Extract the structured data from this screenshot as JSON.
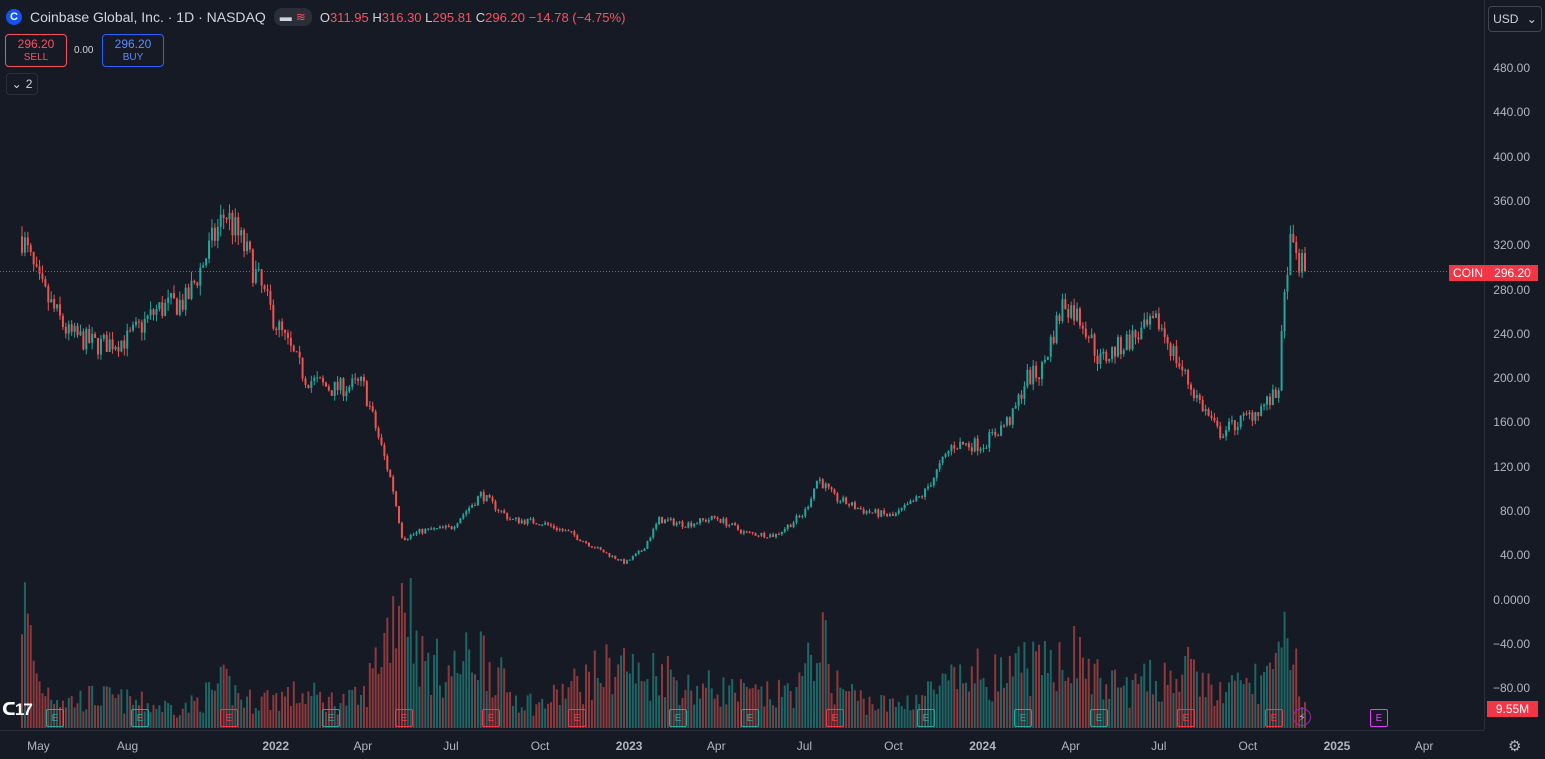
{
  "header": {
    "title": "Coinbase Global, Inc. · 1D · NASDAQ",
    "logo_letter": "C",
    "ohlc": {
      "o_label": "O",
      "o": "311.95",
      "h_label": "H",
      "h": "316.30",
      "l_label": "L",
      "l": "295.81",
      "c_label": "C",
      "c": "296.20",
      "change": "−14.78 (−4.75%)"
    }
  },
  "trade": {
    "sell_price": "296.20",
    "sell_label": "SELL",
    "spread": "0.00",
    "buy_price": "296.20",
    "buy_label": "BUY"
  },
  "indicators_collapse": {
    "count": "2"
  },
  "currency": {
    "value": "USD"
  },
  "price_axis": {
    "labels": [
      "480.00",
      "440.00",
      "400.00",
      "360.00",
      "320.00",
      "280.00",
      "240.00",
      "200.00",
      "160.00",
      "120.00",
      "80.00",
      "40.00",
      "0.0000",
      "−40.00",
      "−80.00"
    ]
  },
  "time_axis": {
    "labels": [
      "May",
      "Aug",
      "2022",
      "Apr",
      "Jul",
      "Oct",
      "2023",
      "Apr",
      "Jul",
      "Oct",
      "2024",
      "Apr",
      "Jul",
      "Oct",
      "2025",
      "Apr"
    ]
  },
  "tags": {
    "symbol": "COIN",
    "last_price": "296.20",
    "volume": "9.55M"
  },
  "earnings_marker": {
    "letter": "E"
  },
  "colors": {
    "up": "#26a69a",
    "down": "#ef5350",
    "background": "#161a25",
    "price_line": "#f23645"
  },
  "chart_data": {
    "type": "candlestick",
    "x": [
      "2021-04-14",
      "2021-05-01",
      "2021-06-01",
      "2021-07-01",
      "2021-08-01",
      "2021-09-01",
      "2021-10-01",
      "2021-11-10",
      "2021-12-01",
      "2022-01-01",
      "2022-02-01",
      "2022-03-01",
      "2022-04-01",
      "2022-05-01",
      "2022-05-12",
      "2022-06-01",
      "2022-07-01",
      "2022-08-01",
      "2022-09-01",
      "2022-10-01",
      "2022-11-01",
      "2022-12-01",
      "2022-12-28",
      "2023-01-15",
      "2023-02-01",
      "2023-03-01",
      "2023-04-01",
      "2023-05-01",
      "2023-06-01",
      "2023-07-01",
      "2023-07-15",
      "2023-08-01",
      "2023-09-01",
      "2023-10-01",
      "2023-11-01",
      "2023-12-01",
      "2024-01-01",
      "2024-02-01",
      "2024-02-15",
      "2024-03-01",
      "2024-03-25",
      "2024-04-15",
      "2024-05-01",
      "2024-06-01",
      "2024-07-01",
      "2024-08-01",
      "2024-09-01",
      "2024-10-01",
      "2024-11-01",
      "2024-11-12",
      "2024-11-29"
    ],
    "close": [
      328,
      285,
      240,
      230,
      235,
      262,
      270,
      350,
      315,
      250,
      200,
      190,
      195,
      105,
      55,
      62,
      65,
      95,
      72,
      70,
      60,
      45,
      33,
      45,
      72,
      68,
      74,
      60,
      58,
      78,
      110,
      92,
      80,
      75,
      95,
      140,
      140,
      165,
      200,
      205,
      270,
      250,
      215,
      235,
      250,
      195,
      150,
      165,
      185,
      320,
      296
    ],
    "volume_millions": [
      60,
      20,
      12,
      14,
      12,
      10,
      9,
      20,
      12,
      14,
      15,
      12,
      13,
      50,
      70,
      30,
      25,
      35,
      15,
      10,
      18,
      25,
      30,
      20,
      28,
      18,
      18,
      15,
      14,
      20,
      45,
      20,
      12,
      10,
      15,
      20,
      25,
      22,
      30,
      25,
      35,
      30,
      20,
      18,
      22,
      25,
      15,
      20,
      25,
      45,
      9.55
    ],
    "ylim": [
      -80,
      500
    ],
    "price_axis_ticks": [
      480,
      440,
      400,
      360,
      320,
      280,
      240,
      200,
      160,
      120,
      80,
      40,
      0,
      -40,
      -80
    ],
    "last_price": 296.2,
    "symbol": "COIN"
  }
}
